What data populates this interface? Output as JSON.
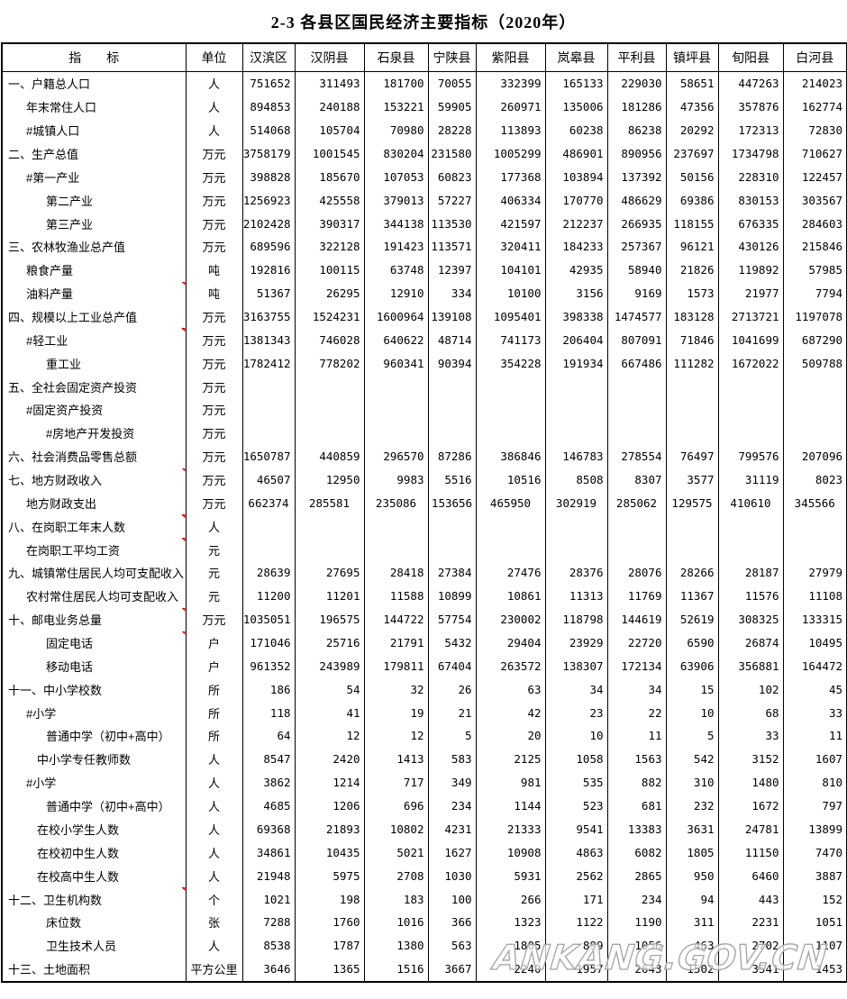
{
  "page": {
    "title": "2-3 各县区国民经济主要指标（2020年）"
  },
  "watermark": {
    "text": "ANKANG.GOV.CN"
  },
  "colors": {
    "flag_marker": "#d40000",
    "border": "#000000",
    "watermark_stroke": "#a3a3a3"
  },
  "table": {
    "indicator_header": "指　　标",
    "unit_header": "单位",
    "regions": [
      "汉滨区",
      "汉阴县",
      "石泉县",
      "宁陕县",
      "紫阳县",
      "岚皋县",
      "平利县",
      "镇坪县",
      "旬阳县",
      "白河县"
    ],
    "rows": [
      {
        "label": "一、户籍总人口",
        "unit": "人",
        "indent": 0,
        "flag": false,
        "center": false,
        "values": [
          "751652",
          "311493",
          "181700",
          "70055",
          "332399",
          "165133",
          "229030",
          "58651",
          "447263",
          "214023"
        ]
      },
      {
        "label": "年末常住人口",
        "unit": "人",
        "indent": 1,
        "flag": false,
        "center": false,
        "values": [
          "894853",
          "240188",
          "153221",
          "59905",
          "260971",
          "135006",
          "181286",
          "47356",
          "357876",
          "162774"
        ]
      },
      {
        "label": "#城镇人口",
        "unit": "人",
        "indent": 1,
        "flag": false,
        "center": false,
        "values": [
          "514068",
          "105704",
          "70980",
          "28228",
          "113893",
          "60238",
          "86238",
          "20292",
          "172313",
          "72830"
        ]
      },
      {
        "label": "二、生产总值",
        "unit": "万元",
        "indent": 0,
        "flag": false,
        "center": false,
        "values": [
          "3758179",
          "1001545",
          "830204",
          "231580",
          "1005299",
          "486901",
          "890956",
          "237697",
          "1734798",
          "710627"
        ]
      },
      {
        "label": "#第一产业",
        "unit": "万元",
        "indent": 1,
        "flag": false,
        "center": false,
        "values": [
          "398828",
          "185670",
          "107053",
          "60823",
          "177368",
          "103894",
          "137392",
          "50156",
          "228310",
          "122457"
        ]
      },
      {
        "label": "第二产业",
        "unit": "万元",
        "indent": 3,
        "flag": false,
        "center": false,
        "values": [
          "1256923",
          "425558",
          "379013",
          "57227",
          "406334",
          "170770",
          "486629",
          "69386",
          "830153",
          "303567"
        ]
      },
      {
        "label": "第三产业",
        "unit": "万元",
        "indent": 3,
        "flag": false,
        "center": false,
        "values": [
          "2102428",
          "390317",
          "344138",
          "113530",
          "421597",
          "212237",
          "266935",
          "118155",
          "676335",
          "284603"
        ]
      },
      {
        "label": "三、农林牧渔业总产值",
        "unit": "万元",
        "indent": 0,
        "flag": false,
        "center": false,
        "values": [
          "689596",
          "322128",
          "191423",
          "113571",
          "320411",
          "184233",
          "257367",
          "96121",
          "430126",
          "215846"
        ]
      },
      {
        "label": "粮食产量",
        "unit": "吨",
        "indent": 1,
        "flag": false,
        "center": false,
        "values": [
          "192816",
          "100115",
          "63748",
          "12397",
          "104101",
          "42935",
          "58940",
          "21826",
          "119892",
          "57985"
        ]
      },
      {
        "label": "油料产量",
        "unit": "吨",
        "indent": 1,
        "flag": true,
        "center": false,
        "values": [
          "51367",
          "26295",
          "12910",
          "334",
          "10100",
          "3156",
          "9169",
          "1573",
          "21977",
          "7794"
        ]
      },
      {
        "label": "四、规模以上工业总产值",
        "unit": "万元",
        "indent": 0,
        "flag": false,
        "center": false,
        "values": [
          "3163755",
          "1524231",
          "1600964",
          "139108",
          "1095401",
          "398338",
          "1474577",
          "183128",
          "2713721",
          "1197078"
        ]
      },
      {
        "label": "#轻工业",
        "unit": "万元",
        "indent": 1,
        "flag": true,
        "center": false,
        "values": [
          "1381343",
          "746028",
          "640622",
          "48714",
          "741173",
          "206404",
          "807091",
          "71846",
          "1041699",
          "687290"
        ]
      },
      {
        "label": "重工业",
        "unit": "万元",
        "indent": 3,
        "flag": false,
        "center": false,
        "values": [
          "1782412",
          "778202",
          "960341",
          "90394",
          "354228",
          "191934",
          "667486",
          "111282",
          "1672022",
          "509788"
        ]
      },
      {
        "label": "五、全社会固定资产投资",
        "unit": "万元",
        "indent": 0,
        "flag": false,
        "center": false,
        "values": [
          "",
          "",
          "",
          "",
          "",
          "",
          "",
          "",
          "",
          ""
        ]
      },
      {
        "label": "#固定资产投资",
        "unit": "万元",
        "indent": 1,
        "flag": false,
        "center": false,
        "values": [
          "",
          "",
          "",
          "",
          "",
          "",
          "",
          "",
          "",
          ""
        ]
      },
      {
        "label": "#房地产开发投资",
        "unit": "万元",
        "indent": 3,
        "flag": false,
        "center": false,
        "values": [
          "",
          "",
          "",
          "",
          "",
          "",
          "",
          "",
          "",
          ""
        ]
      },
      {
        "label": "六、社会消费品零售总额",
        "unit": "万元",
        "indent": 0,
        "flag": false,
        "center": false,
        "values": [
          "1650787",
          "440859",
          "296570",
          "87286",
          "386846",
          "146783",
          "278554",
          "76497",
          "799576",
          "207096"
        ]
      },
      {
        "label": "七、地方财政收入",
        "unit": "万元",
        "indent": 0,
        "flag": true,
        "center": false,
        "values": [
          "46507",
          "12950",
          "9983",
          "5516",
          "10516",
          "8508",
          "8307",
          "3577",
          "31119",
          "8023"
        ]
      },
      {
        "label": "地方财政支出",
        "unit": "万元",
        "indent": 1,
        "flag": false,
        "center": true,
        "values": [
          "662374",
          "285581",
          "235086",
          "153656",
          "465950",
          "302919",
          "285062",
          "129575",
          "410610",
          "345566"
        ]
      },
      {
        "label": "八、在岗职工年末人数",
        "unit": "人",
        "indent": 0,
        "flag": true,
        "center": false,
        "values": [
          "",
          "",
          "",
          "",
          "",
          "",
          "",
          "",
          "",
          ""
        ]
      },
      {
        "label": "在岗职工平均工资",
        "unit": "元",
        "indent": 1,
        "flag": true,
        "center": false,
        "values": [
          "",
          "",
          "",
          "",
          "",
          "",
          "",
          "",
          "",
          ""
        ]
      },
      {
        "label": "九、城镇常住居民人均可支配收入",
        "unit": "元",
        "indent": 0,
        "flag": false,
        "center": false,
        "values": [
          "28639",
          "27695",
          "28418",
          "27384",
          "27476",
          "28376",
          "28076",
          "28266",
          "28187",
          "27979"
        ]
      },
      {
        "label": "农村常住居民人均可支配收入",
        "unit": "元",
        "indent": 1,
        "flag": false,
        "center": false,
        "values": [
          "11200",
          "11201",
          "11588",
          "10899",
          "10861",
          "11313",
          "11769",
          "11367",
          "11576",
          "11108"
        ]
      },
      {
        "label": "十、邮电业务总量",
        "unit": "万元",
        "indent": 0,
        "flag": true,
        "center": false,
        "values": [
          "1035051",
          "196575",
          "144722",
          "57754",
          "230002",
          "118798",
          "144619",
          "52619",
          "308325",
          "133315"
        ]
      },
      {
        "label": "固定电话",
        "unit": "户",
        "indent": 3,
        "flag": true,
        "center": false,
        "values": [
          "171046",
          "25716",
          "21791",
          "5432",
          "29404",
          "23929",
          "22720",
          "6590",
          "26874",
          "10495"
        ]
      },
      {
        "label": "移动电话",
        "unit": "户",
        "indent": 3,
        "flag": false,
        "center": false,
        "values": [
          "961352",
          "243989",
          "179811",
          "67404",
          "263572",
          "138307",
          "172134",
          "63906",
          "356881",
          "164472"
        ]
      },
      {
        "label": "十一、中小学校数",
        "unit": "所",
        "indent": 0,
        "flag": false,
        "center": false,
        "values": [
          "186",
          "54",
          "32",
          "26",
          "63",
          "34",
          "34",
          "15",
          "102",
          "45"
        ]
      },
      {
        "label": "#小学",
        "unit": "所",
        "indent": 1,
        "flag": false,
        "center": false,
        "values": [
          "118",
          "41",
          "19",
          "21",
          "42",
          "23",
          "22",
          "10",
          "68",
          "33"
        ]
      },
      {
        "label": "普通中学（初中+高中）",
        "unit": "所",
        "indent": 3,
        "flag": false,
        "center": false,
        "values": [
          "64",
          "12",
          "12",
          "5",
          "20",
          "10",
          "11",
          "5",
          "33",
          "11"
        ]
      },
      {
        "label": "中小学专任教师数",
        "unit": "人",
        "indent": 2,
        "flag": false,
        "center": false,
        "values": [
          "8547",
          "2420",
          "1413",
          "583",
          "2125",
          "1058",
          "1563",
          "542",
          "3152",
          "1607"
        ]
      },
      {
        "label": "#小学",
        "unit": "人",
        "indent": 1,
        "flag": false,
        "center": false,
        "values": [
          "3862",
          "1214",
          "717",
          "349",
          "981",
          "535",
          "882",
          "310",
          "1480",
          "810"
        ]
      },
      {
        "label": "普通中学（初中+高中）",
        "unit": "人",
        "indent": 3,
        "flag": false,
        "center": false,
        "values": [
          "4685",
          "1206",
          "696",
          "234",
          "1144",
          "523",
          "681",
          "232",
          "1672",
          "797"
        ]
      },
      {
        "label": "在校小学生人数",
        "unit": "人",
        "indent": 2,
        "flag": false,
        "center": false,
        "values": [
          "69368",
          "21893",
          "10802",
          "4231",
          "21333",
          "9541",
          "13383",
          "3631",
          "24781",
          "13899"
        ]
      },
      {
        "label": "在校初中生人数",
        "unit": "人",
        "indent": 2,
        "flag": false,
        "center": false,
        "values": [
          "34861",
          "10435",
          "5021",
          "1627",
          "10908",
          "4863",
          "6082",
          "1805",
          "11150",
          "7470"
        ]
      },
      {
        "label": "在校高中生人数",
        "unit": "人",
        "indent": 2,
        "flag": false,
        "center": false,
        "values": [
          "21948",
          "5975",
          "2708",
          "1030",
          "5931",
          "2562",
          "2865",
          "950",
          "6460",
          "3887"
        ]
      },
      {
        "label": "十二、卫生机构数",
        "unit": "个",
        "indent": 0,
        "flag": true,
        "center": false,
        "values": [
          "1021",
          "198",
          "183",
          "100",
          "266",
          "171",
          "234",
          "94",
          "443",
          "152"
        ]
      },
      {
        "label": "床位数",
        "unit": "张",
        "indent": 3,
        "flag": false,
        "center": false,
        "values": [
          "7288",
          "1760",
          "1016",
          "366",
          "1323",
          "1122",
          "1190",
          "311",
          "2231",
          "1051"
        ]
      },
      {
        "label": "卫生技术人员",
        "unit": "人",
        "indent": 3,
        "flag": false,
        "center": false,
        "values": [
          "8538",
          "1787",
          "1380",
          "563",
          "1805",
          "899",
          "1056",
          "463",
          "2702",
          "1107"
        ]
      },
      {
        "label": "十三、土地面积",
        "unit": "平方公里",
        "indent": 0,
        "flag": false,
        "center": false,
        "values": [
          "3646",
          "1365",
          "1516",
          "3667",
          "2240",
          "1957",
          "2643",
          "1502",
          "3541",
          "1453"
        ]
      }
    ]
  }
}
